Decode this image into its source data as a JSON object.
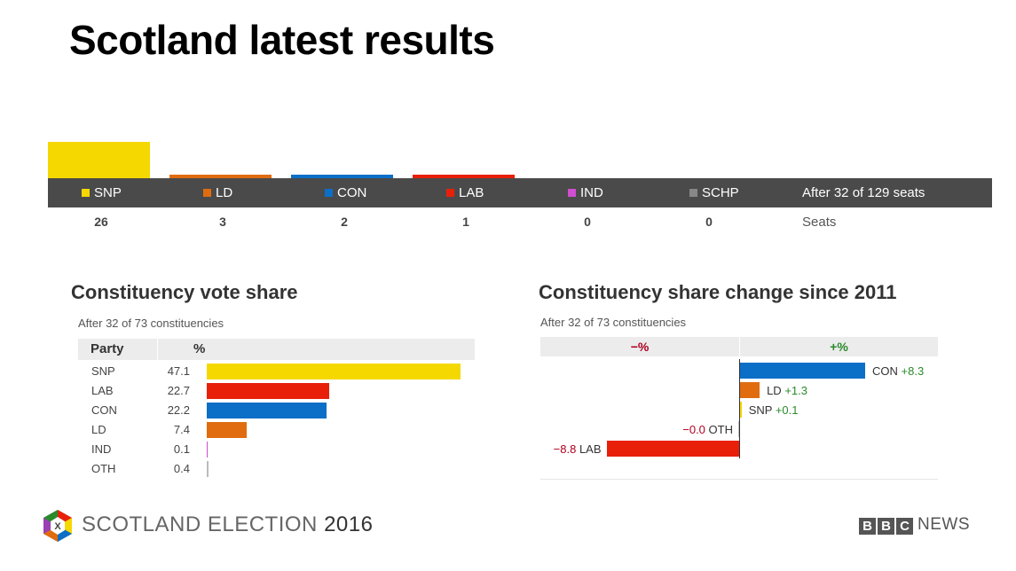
{
  "page_title": "Scotland latest results",
  "colors": {
    "SNP": "#f5d800",
    "LD": "#e06c0f",
    "CON": "#0b6ec7",
    "LAB": "#e8200a",
    "IND": "#d04ed0",
    "SCHP": "#888888",
    "OTH": "#bbbbbb"
  },
  "seats": {
    "after_label": "After 32 of 129 seats",
    "seats_label": "Seats",
    "parties": [
      {
        "party": "SNP",
        "seats": "26"
      },
      {
        "party": "LD",
        "seats": "3"
      },
      {
        "party": "CON",
        "seats": "2"
      },
      {
        "party": "LAB",
        "seats": "1"
      },
      {
        "party": "IND",
        "seats": "0"
      },
      {
        "party": "SCHP",
        "seats": "0"
      }
    ]
  },
  "vote_share": {
    "title": "Constituency vote share",
    "subtitle": "After 32 of 73 constituencies",
    "col_party": "Party",
    "col_pct": "%"
  },
  "share_change": {
    "title": "Constituency share change since 2011",
    "subtitle": "After 32 of 73 constituencies",
    "neg_header": "−%",
    "pos_header": "+%"
  },
  "chart_data": [
    {
      "type": "bar",
      "title": "",
      "categories": [
        "SNP",
        "LD",
        "CON",
        "LAB",
        "IND",
        "SCHP"
      ],
      "values": [
        26,
        3,
        2,
        1,
        0,
        0
      ],
      "ylabel": "Seats"
    },
    {
      "type": "bar",
      "title": "Constituency vote share",
      "categories": [
        "SNP",
        "LAB",
        "CON",
        "LD",
        "IND",
        "OTH"
      ],
      "values": [
        47.1,
        22.7,
        22.2,
        7.4,
        0.1,
        0.4
      ],
      "value_labels": [
        "47.1",
        "22.7",
        "22.2",
        "7.4",
        "0.1",
        "0.4"
      ]
    },
    {
      "type": "bar",
      "title": "Constituency share change since 2011",
      "categories": [
        "CON",
        "LD",
        "SNP",
        "OTH",
        "LAB"
      ],
      "values": [
        8.3,
        1.3,
        0.1,
        -0.0,
        -8.8
      ],
      "value_labels": [
        "+8.3",
        "+1.3",
        "+0.1",
        "−0.0",
        "−8.8"
      ]
    }
  ],
  "footer": {
    "election_text": "SCOTLAND ELECTION",
    "year": "2016",
    "logo_letter": "X",
    "bbc_letters": [
      "B",
      "B",
      "C"
    ],
    "news": "NEWS"
  }
}
